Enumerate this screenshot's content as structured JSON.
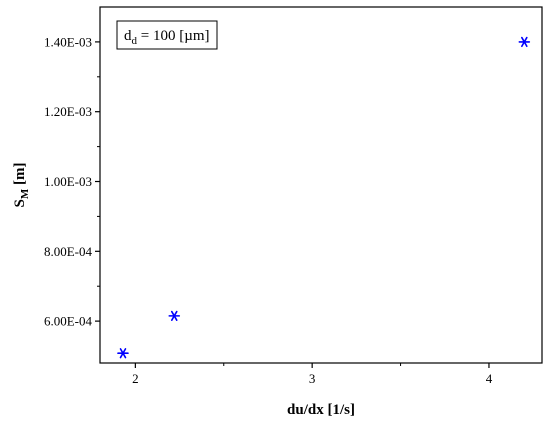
{
  "chart_data": {
    "type": "scatter",
    "annotation": {
      "main": "d",
      "sub": "d",
      "rest": " = 100 [µm]"
    },
    "xlabel": "du/dx [1/s]",
    "ylabel": {
      "main": "S",
      "sub": "M",
      "rest": " [m]"
    },
    "xlim": [
      1.8,
      4.3
    ],
    "ylim": [
      0.00048,
      0.0015
    ],
    "xticks": [
      {
        "value": 2,
        "label": "2"
      },
      {
        "value": 3,
        "label": "3"
      },
      {
        "value": 4,
        "label": "4"
      }
    ],
    "yticks": [
      {
        "value": 0.0006,
        "label": "6.00E-04"
      },
      {
        "value": 0.0008,
        "label": "8.00E-04"
      },
      {
        "value": 0.001,
        "label": "1.00E-03"
      },
      {
        "value": 0.0012,
        "label": "1.20E-03"
      },
      {
        "value": 0.0014,
        "label": "1.40E-03"
      }
    ],
    "series": [
      {
        "marker": "asterisk",
        "color": "#0000ff",
        "points": [
          {
            "x": 1.93,
            "y": 0.000508
          },
          {
            "x": 2.22,
            "y": 0.000615
          },
          {
            "x": 4.2,
            "y": 0.0014
          }
        ]
      }
    ]
  }
}
